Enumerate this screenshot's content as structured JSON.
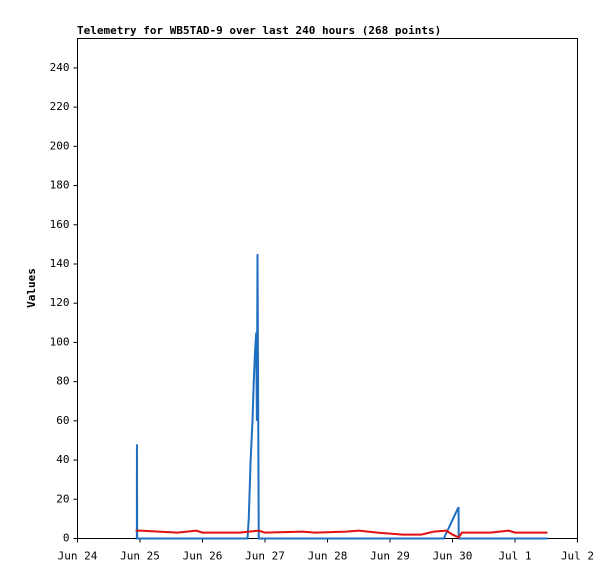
{
  "chart_data": {
    "type": "line",
    "title": "Telemetry for WB5TAD-9 over last 240 hours (268 points)",
    "ylabel": "Values",
    "xlim": [
      0,
      8
    ],
    "xticks": [
      {
        "value": 0,
        "label": "Jun 24"
      },
      {
        "value": 1,
        "label": "Jun 25"
      },
      {
        "value": 2,
        "label": "Jun 26"
      },
      {
        "value": 3,
        "label": "Jun 27"
      },
      {
        "value": 4,
        "label": "Jun 28"
      },
      {
        "value": 5,
        "label": "Jun 29"
      },
      {
        "value": 6,
        "label": "Jun 30"
      },
      {
        "value": 7,
        "label": "Jul 1"
      },
      {
        "value": 8,
        "label": "Jul 2"
      }
    ],
    "ylim": [
      0,
      255
    ],
    "yticks": [
      0,
      20,
      40,
      60,
      80,
      100,
      120,
      140,
      160,
      180,
      200,
      220,
      240
    ],
    "series": [
      {
        "color": "#1f6fc0",
        "x": [
          0.93,
          0.95,
          0.951,
          0.955,
          2.72,
          2.74,
          2.77,
          2.8,
          2.82,
          2.84,
          2.86,
          2.87,
          2.88,
          2.9,
          5.86,
          6.096,
          6.1,
          7.52
        ],
        "values": [
          0,
          0,
          48,
          0,
          0,
          10,
          40,
          60,
          80,
          95,
          105,
          60,
          145,
          0,
          0,
          16,
          0,
          0
        ]
      },
      {
        "color": "#e01010",
        "x": [
          0.93,
          1.0,
          1.3,
          1.6,
          1.9,
          2.0,
          2.6,
          2.9,
          3.0,
          3.6,
          3.8,
          4.3,
          4.5,
          4.8,
          5.2,
          5.5,
          5.7,
          5.9,
          6.0,
          6.1,
          6.15,
          6.6,
          6.9,
          7.0,
          7.52
        ],
        "values": [
          4,
          4,
          3.5,
          3,
          4,
          3,
          3,
          4,
          3,
          3.5,
          3,
          3.5,
          4,
          3,
          2,
          2,
          3.5,
          4,
          2,
          0.5,
          3,
          3,
          4,
          3,
          3
        ]
      }
    ]
  }
}
